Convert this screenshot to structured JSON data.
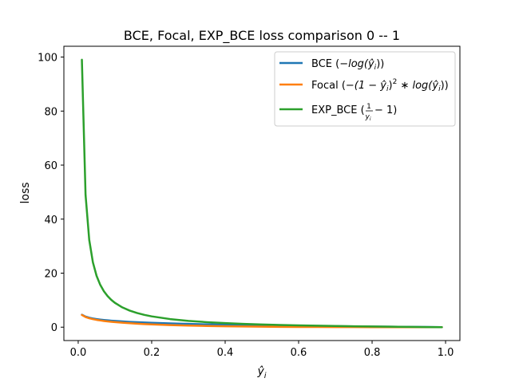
{
  "chart_data": {
    "type": "line",
    "title": "BCE, Focal, EXP_BCE loss comparison 0 -- 1",
    "xlabel": "ŷ",
    "xlabel_subscript": "i",
    "ylabel": "loss",
    "xlim": [
      -0.039,
      1.039
    ],
    "ylim": [
      -4.95,
      104.0
    ],
    "x_ticks": [
      0.0,
      0.2,
      0.4,
      0.6,
      0.8,
      1.0
    ],
    "x_tick_labels": [
      "0.0",
      "0.2",
      "0.4",
      "0.6",
      "0.8",
      "1.0"
    ],
    "y_ticks": [
      0,
      20,
      40,
      60,
      80,
      100
    ],
    "y_tick_labels": [
      "0",
      "20",
      "40",
      "60",
      "80",
      "100"
    ],
    "grid": false,
    "legend_position": "top-right",
    "x": [
      0.01,
      0.02,
      0.03,
      0.04,
      0.05,
      0.06,
      0.07,
      0.08,
      0.09,
      0.1,
      0.12,
      0.14,
      0.16,
      0.18,
      0.2,
      0.25,
      0.3,
      0.35,
      0.4,
      0.45,
      0.5,
      0.55,
      0.6,
      0.65,
      0.7,
      0.75,
      0.8,
      0.85,
      0.9,
      0.95,
      0.99
    ],
    "series": [
      {
        "name": "BCE (−log(ŷ_i))",
        "color": "#1f77b4",
        "values": [
          4.605,
          3.912,
          3.507,
          3.219,
          2.996,
          2.813,
          2.659,
          2.526,
          2.408,
          2.303,
          2.12,
          1.966,
          1.833,
          1.715,
          1.609,
          1.386,
          1.204,
          1.05,
          0.916,
          0.799,
          0.693,
          0.598,
          0.511,
          0.431,
          0.357,
          0.288,
          0.223,
          0.163,
          0.105,
          0.051,
          0.01
        ]
      },
      {
        "name": "Focal (−(1−ŷ_i)²∗log(ŷ_i))",
        "color": "#ff7f0e",
        "values": [
          4.513,
          3.757,
          3.3,
          2.967,
          2.704,
          2.486,
          2.3,
          2.138,
          1.994,
          1.865,
          1.642,
          1.457,
          1.293,
          1.152,
          1.03,
          0.78,
          0.59,
          0.444,
          0.33,
          0.242,
          0.173,
          0.121,
          0.082,
          0.053,
          0.032,
          0.018,
          0.009,
          0.004,
          0.001,
          0.0,
          0.0
        ]
      },
      {
        "name": "EXP_BCE (1/ŷ_i − 1)",
        "color": "#2ca02c",
        "values": [
          99.0,
          49.0,
          32.33,
          24.0,
          19.0,
          15.67,
          13.29,
          11.5,
          10.11,
          9.0,
          7.33,
          6.14,
          5.25,
          4.56,
          4.0,
          3.0,
          2.33,
          1.86,
          1.5,
          1.22,
          1.0,
          0.82,
          0.67,
          0.54,
          0.43,
          0.33,
          0.25,
          0.18,
          0.11,
          0.05,
          0.01
        ]
      }
    ],
    "legend": {
      "bce": {
        "label_pre": "BCE (",
        "math": "−log(ŷ",
        "sub": "i",
        "label_post": "))"
      },
      "focal": {
        "label_pre": "Focal (",
        "math1": "−(1 − ŷ",
        "sub1": "i",
        "math2": ")",
        "sup": "2",
        "math3": " ∗ log(ŷ",
        "sub2": "i",
        "label_post": "))"
      },
      "exp": {
        "label_pre": "EXP_BCE (",
        "frac_num": "1",
        "frac_den": "y",
        "frac_den_sub": "i",
        "math": " − 1",
        "label_post": ")"
      }
    }
  }
}
